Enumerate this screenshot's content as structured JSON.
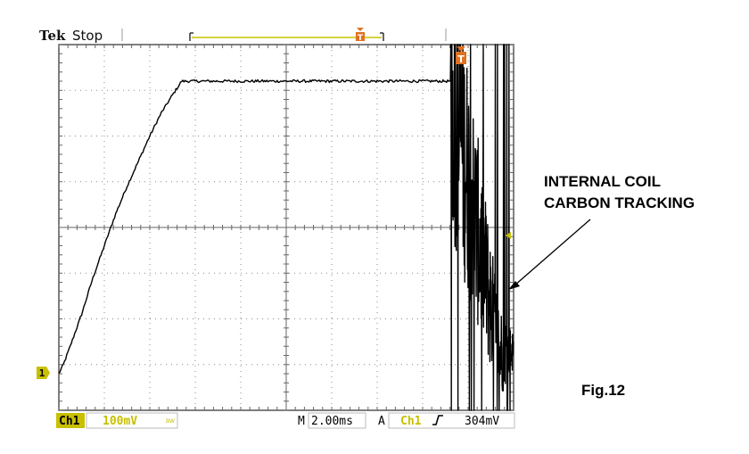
{
  "header": {
    "brand": "Tek",
    "status": "Stop"
  },
  "colors": {
    "accent": "#C8C000",
    "trigger": "#E07020",
    "trace": "#000000",
    "grid": "#808080"
  },
  "icons": {
    "trigger_marker": "T",
    "channel_marker": "1",
    "trigger_level": "arrow-left"
  },
  "status_bar": {
    "channel": "Ch1",
    "scale": "100mV",
    "bw_flag": "BW",
    "time_prefix": "M",
    "timebase": "2.00ms",
    "acq_mode": "A",
    "trigger_source": "Ch1",
    "trigger_slope_icon": "rising-edge",
    "trigger_level": "304mV"
  },
  "annotation": {
    "line1": "INTERNAL COIL",
    "line2": "CARBON TRACKING"
  },
  "figure_label": "Fig.12",
  "chart_data": {
    "type": "line",
    "title": "",
    "xlabel": "",
    "ylabel": "",
    "x_unit": "ms",
    "y_unit": "mV",
    "x_per_div": 2.0,
    "y_per_div": 100,
    "xlim": [
      0,
      20
    ],
    "ylim": [
      -400,
      400
    ],
    "ground_level_mV": -320,
    "trigger_level_mV": 304,
    "grid": true,
    "series": [
      {
        "x": [
          0,
          0.2,
          0.5,
          1.0,
          1.5,
          2.0,
          2.5,
          3.0,
          3.5,
          4.0,
          4.5,
          5.0,
          5.4,
          6.0,
          8.0,
          10.0,
          12.0,
          14.0,
          16.0,
          17.0,
          17.2,
          17.24
        ],
        "y": [
          -320,
          -300,
          -260,
          -190,
          -110,
          -40,
          30,
          90,
          145,
          200,
          250,
          290,
          320,
          320,
          320,
          320,
          320,
          320,
          320,
          320,
          320,
          318
        ]
      }
    ],
    "noise": {
      "x_start": 17.24,
      "x_end": 20.0,
      "y_min": -400,
      "y_max": 400,
      "decay_to": -270
    }
  }
}
